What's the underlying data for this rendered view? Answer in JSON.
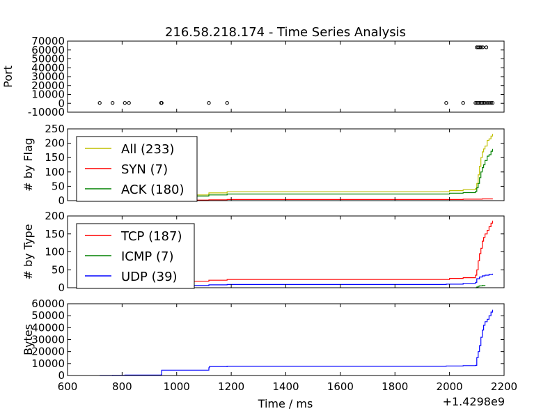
{
  "figure": {
    "title": "216.58.218.174 - Time Series Analysis",
    "xlabel": "Time / ms",
    "offset_label": "+1.4298e9",
    "xlim": [
      600,
      2200
    ],
    "xticks": [
      600,
      800,
      1000,
      1200,
      1400,
      1600,
      1800,
      2000,
      2200
    ]
  },
  "chart_data": [
    {
      "type": "scatter",
      "ylabel": "Port",
      "ylim": [
        -10000,
        70000
      ],
      "yticks": [
        -10000,
        0,
        10000,
        20000,
        30000,
        40000,
        50000,
        60000,
        70000
      ],
      "legend": null,
      "series": [
        {
          "color": "#000000",
          "points": [
            [
              718,
              443
            ],
            [
              765,
              443
            ],
            [
              810,
              443
            ],
            [
              825,
              443
            ],
            [
              943,
              443
            ],
            [
              945,
              443
            ],
            [
              1118,
              443
            ],
            [
              1185,
              443
            ],
            [
              1988,
              443
            ],
            [
              2050,
              443
            ],
            [
              2095,
              443
            ],
            [
              2100,
              443
            ],
            [
              2105,
              443
            ],
            [
              2110,
              443
            ],
            [
              2115,
              443
            ],
            [
              2120,
              443
            ],
            [
              2125,
              443
            ],
            [
              2130,
              443
            ],
            [
              2138,
              443
            ],
            [
              2145,
              443
            ],
            [
              2152,
              443
            ],
            [
              2158,
              443
            ],
            [
              2100,
              63000
            ],
            [
              2105,
              63000
            ],
            [
              2110,
              63000
            ],
            [
              2115,
              63000
            ],
            [
              2122,
              63000
            ],
            [
              2135,
              63000
            ]
          ]
        }
      ]
    },
    {
      "type": "line",
      "ylabel": "# by Flag",
      "ylim": [
        0,
        250
      ],
      "yticks": [
        0,
        50,
        100,
        150,
        200,
        250
      ],
      "legend": "upper-left",
      "series": [
        {
          "name": "All (233)",
          "color": "#bfbf00",
          "points": [
            [
              718,
              1
            ],
            [
              765,
              2
            ],
            [
              810,
              3
            ],
            [
              825,
              5
            ],
            [
              943,
              15
            ],
            [
              945,
              20
            ],
            [
              1118,
              27
            ],
            [
              1185,
              31
            ],
            [
              1988,
              31
            ],
            [
              2000,
              35
            ],
            [
              2050,
              38
            ],
            [
              2095,
              42
            ],
            [
              2100,
              60
            ],
            [
              2105,
              90
            ],
            [
              2110,
              120
            ],
            [
              2115,
              150
            ],
            [
              2120,
              170
            ],
            [
              2125,
              180
            ],
            [
              2130,
              190
            ],
            [
              2138,
              210
            ],
            [
              2145,
              215
            ],
            [
              2152,
              225
            ],
            [
              2158,
              233
            ]
          ]
        },
        {
          "name": "SYN (7)",
          "color": "#ff0000",
          "points": [
            [
              718,
              0
            ],
            [
              765,
              1
            ],
            [
              943,
              2
            ],
            [
              1118,
              3
            ],
            [
              1185,
              4
            ],
            [
              2050,
              5
            ],
            [
              2120,
              6
            ],
            [
              2158,
              7
            ]
          ]
        },
        {
          "name": "ACK (180)",
          "color": "#008000",
          "points": [
            [
              718,
              0
            ],
            [
              765,
              1
            ],
            [
              810,
              2
            ],
            [
              825,
              4
            ],
            [
              943,
              12
            ],
            [
              945,
              16
            ],
            [
              1118,
              20
            ],
            [
              1185,
              23
            ],
            [
              1988,
              23
            ],
            [
              2000,
              26
            ],
            [
              2050,
              28
            ],
            [
              2095,
              32
            ],
            [
              2100,
              45
            ],
            [
              2105,
              60
            ],
            [
              2110,
              80
            ],
            [
              2115,
              100
            ],
            [
              2120,
              115
            ],
            [
              2125,
              125
            ],
            [
              2130,
              140
            ],
            [
              2138,
              155
            ],
            [
              2145,
              160
            ],
            [
              2152,
              172
            ],
            [
              2158,
              180
            ]
          ]
        }
      ]
    },
    {
      "type": "line",
      "ylabel": "# by Type",
      "ylim": [
        0,
        200
      ],
      "yticks": [
        0,
        50,
        100,
        150,
        200
      ],
      "legend": "upper-left",
      "series": [
        {
          "name": "TCP (187)",
          "color": "#ff0000",
          "points": [
            [
              718,
              1
            ],
            [
              765,
              2
            ],
            [
              810,
              3
            ],
            [
              825,
              5
            ],
            [
              943,
              15
            ],
            [
              945,
              18
            ],
            [
              1118,
              21
            ],
            [
              1185,
              23
            ],
            [
              1988,
              23
            ],
            [
              2000,
              26
            ],
            [
              2050,
              28
            ],
            [
              2095,
              35
            ],
            [
              2100,
              50
            ],
            [
              2105,
              75
            ],
            [
              2110,
              95
            ],
            [
              2115,
              110
            ],
            [
              2120,
              130
            ],
            [
              2125,
              140
            ],
            [
              2130,
              150
            ],
            [
              2138,
              160
            ],
            [
              2145,
              170
            ],
            [
              2152,
              180
            ],
            [
              2158,
              187
            ]
          ]
        },
        {
          "name": "ICMP (7)",
          "color": "#008000",
          "points": [
            [
              2095,
              0
            ],
            [
              2100,
              2
            ],
            [
              2105,
              4
            ],
            [
              2110,
              5
            ],
            [
              2120,
              6
            ],
            [
              2130,
              7
            ]
          ]
        },
        {
          "name": "UDP (39)",
          "color": "#0000ff",
          "points": [
            [
              718,
              1
            ],
            [
              765,
              2
            ],
            [
              810,
              3
            ],
            [
              943,
              6
            ],
            [
              1118,
              8
            ],
            [
              1185,
              9
            ],
            [
              1988,
              10
            ],
            [
              2050,
              12
            ],
            [
              2095,
              15
            ],
            [
              2100,
              25
            ],
            [
              2110,
              30
            ],
            [
              2120,
              33
            ],
            [
              2130,
              35
            ],
            [
              2145,
              37
            ],
            [
              2158,
              39
            ]
          ]
        }
      ]
    },
    {
      "type": "line",
      "ylabel": "Bytes",
      "ylim": [
        0,
        60000
      ],
      "yticks": [
        0,
        10000,
        20000,
        30000,
        40000,
        50000,
        60000
      ],
      "legend": null,
      "series": [
        {
          "color": "#0000ff",
          "points": [
            [
              718,
              0
            ],
            [
              765,
              200
            ],
            [
              810,
              400
            ],
            [
              943,
              500
            ],
            [
              945,
              4500
            ],
            [
              1118,
              6500
            ],
            [
              1120,
              7500
            ],
            [
              1185,
              7800
            ],
            [
              1988,
              8000
            ],
            [
              2050,
              8300
            ],
            [
              2095,
              8500
            ],
            [
              2100,
              15000
            ],
            [
              2105,
              20000
            ],
            [
              2110,
              25000
            ],
            [
              2115,
              32000
            ],
            [
              2120,
              38000
            ],
            [
              2125,
              42000
            ],
            [
              2130,
              45000
            ],
            [
              2138,
              47000
            ],
            [
              2145,
              50000
            ],
            [
              2152,
              53000
            ],
            [
              2158,
              55000
            ]
          ]
        }
      ]
    }
  ]
}
